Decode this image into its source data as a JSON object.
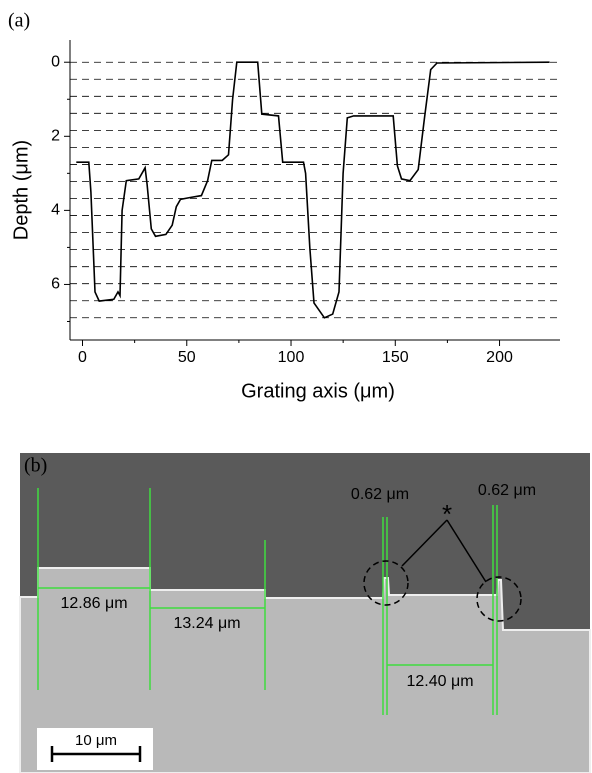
{
  "chart_data": {
    "type": "line",
    "panel_label": "(a)",
    "xlabel": "Grating axis (μm)",
    "ylabel": "Depth (μm)",
    "xlim": [
      -6,
      229
    ],
    "ylim": [
      -0.6,
      7.5
    ],
    "y_inverted": true,
    "xticks": [
      0,
      50,
      100,
      150,
      200
    ],
    "yticks": [
      0,
      2,
      4,
      6
    ],
    "yminor": [
      1,
      3,
      5,
      7
    ],
    "xminor": [
      25,
      75,
      125,
      175
    ],
    "dashed_levels": [
      0,
      0.46,
      0.92,
      1.38,
      1.84,
      2.3,
      2.76,
      3.22,
      3.68,
      4.14,
      4.6,
      5.06,
      5.52,
      5.98,
      6.44,
      6.9
    ],
    "series": [
      {
        "color": "#000000",
        "x": [
          -3,
          3,
          4,
          6,
          8,
          15,
          17,
          18,
          19,
          21,
          27,
          30,
          31,
          33,
          35,
          40,
          43,
          45,
          47,
          52,
          57,
          60,
          62,
          67,
          70,
          72,
          74,
          84,
          86,
          94,
          96,
          104,
          106,
          107,
          109,
          111,
          116,
          120,
          123,
          125,
          127,
          130,
          146,
          149,
          151,
          153,
          157,
          161,
          164,
          167,
          170,
          224
        ],
        "values": [
          2.7,
          2.7,
          3.5,
          6.2,
          6.45,
          6.4,
          6.2,
          6.3,
          4,
          3.2,
          3.15,
          2.85,
          3.3,
          4.5,
          4.7,
          4.65,
          4.4,
          3.9,
          3.7,
          3.65,
          3.6,
          3.2,
          2.65,
          2.65,
          2.5,
          1.0,
          0.0,
          0.0,
          1.4,
          1.45,
          2.7,
          2.7,
          2.7,
          3.0,
          5.0,
          6.5,
          6.9,
          6.8,
          6.2,
          3.0,
          1.5,
          1.45,
          1.45,
          1.45,
          2.8,
          3.15,
          3.2,
          2.9,
          1.5,
          0.2,
          0.02,
          0.0
        ]
      }
    ]
  },
  "image_b": {
    "panel_label": "(b)",
    "widths": [
      "12.86 μm",
      "13.24 μm",
      "12.40 μm"
    ],
    "steps": [
      "0.62 μm",
      "0.62 μm"
    ],
    "marker": "*",
    "scale_bar": "10 μm"
  }
}
